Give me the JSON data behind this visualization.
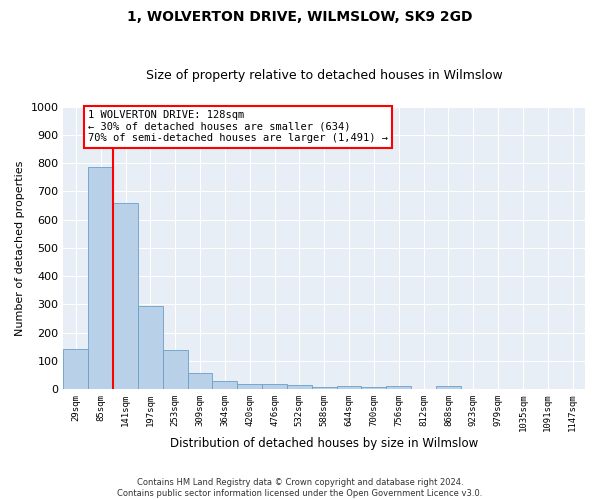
{
  "title": "1, WOLVERTON DRIVE, WILMSLOW, SK9 2GD",
  "subtitle": "Size of property relative to detached houses in Wilmslow",
  "xlabel": "Distribution of detached houses by size in Wilmslow",
  "ylabel": "Number of detached properties",
  "bar_values": [
    143,
    785,
    660,
    295,
    138,
    55,
    28,
    18,
    18,
    13,
    8,
    10,
    8,
    10,
    0,
    10,
    0,
    0,
    0,
    0,
    0
  ],
  "bar_labels": [
    "29sqm",
    "85sqm",
    "141sqm",
    "197sqm",
    "253sqm",
    "309sqm",
    "364sqm",
    "420sqm",
    "476sqm",
    "532sqm",
    "588sqm",
    "644sqm",
    "700sqm",
    "756sqm",
    "812sqm",
    "868sqm",
    "923sqm",
    "979sqm",
    "1035sqm",
    "1091sqm",
    "1147sqm"
  ],
  "bar_color": "#b8d0e8",
  "bar_edge_color": "#6a9fc8",
  "vline_x": 1.5,
  "vline_color": "red",
  "annotation_text": "1 WOLVERTON DRIVE: 128sqm\n← 30% of detached houses are smaller (634)\n70% of semi-detached houses are larger (1,491) →",
  "annotation_box_color": "white",
  "annotation_box_edge": "red",
  "ylim": [
    0,
    1000
  ],
  "yticks": [
    0,
    100,
    200,
    300,
    400,
    500,
    600,
    700,
    800,
    900,
    1000
  ],
  "footer": "Contains HM Land Registry data © Crown copyright and database right 2024.\nContains public sector information licensed under the Open Government Licence v3.0.",
  "fig_bg_color": "#ffffff",
  "plot_bg_color": "#e8eef5",
  "grid_color": "#ffffff",
  "title_fontsize": 10,
  "subtitle_fontsize": 9
}
